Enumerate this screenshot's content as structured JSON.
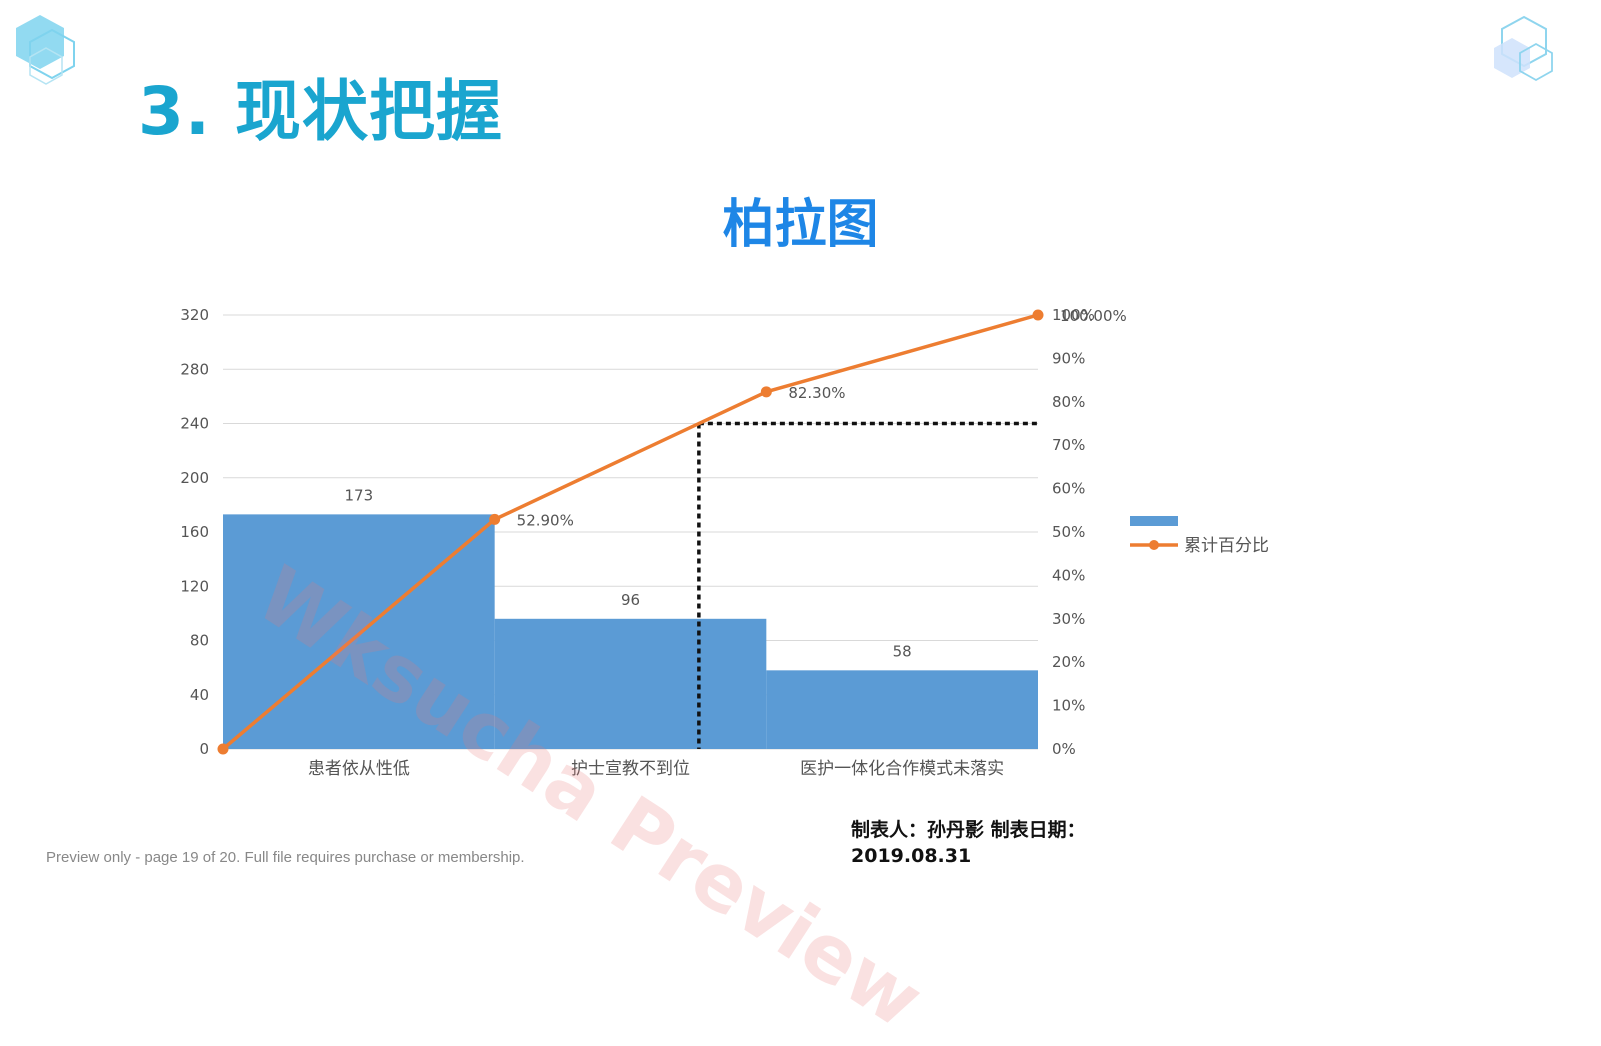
{
  "slide": {
    "title": "3. 现状把握"
  },
  "watermark": "Wksucha Preview",
  "footer": {
    "maker": "制表人：孙丹影  制表日期：",
    "date": "2019.08.31",
    "preview_note": "Preview only - page 19 of 20. Full file requires purchase or membership."
  },
  "colors": {
    "title": "#1aa5cf",
    "chart_title": "#1e86e6",
    "bar": "#5b9bd5",
    "line": "#ed7d31"
  },
  "chart_data": {
    "type": "bar",
    "title": "柏拉图",
    "categories": [
      "患者依从性低",
      "护士宣教不到位",
      "医护一体化合作模式未落实"
    ],
    "values": [
      173,
      96,
      58
    ],
    "value_labels": [
      "173",
      "96",
      "58"
    ],
    "ylim": [
      0,
      320
    ],
    "yticks": [
      "0",
      "40",
      "80",
      "120",
      "160",
      "200",
      "240",
      "280",
      "320"
    ],
    "y2lim": [
      0,
      100
    ],
    "y2ticks": [
      "0%",
      "10%",
      "20%",
      "30%",
      "40%",
      "50%",
      "60%",
      "70%",
      "80%",
      "90%",
      "100%"
    ],
    "line_series": {
      "name": "累计百分比",
      "x_positions": [
        0,
        1,
        2,
        3
      ],
      "values": [
        0,
        52.9,
        82.3,
        100
      ],
      "labels": [
        "",
        "52.90%",
        "82.30%",
        "100.00%"
      ]
    },
    "threshold_percent": 75,
    "legend": [
      "",
      "累计百分比"
    ],
    "legend_position": "right",
    "grid": true
  }
}
